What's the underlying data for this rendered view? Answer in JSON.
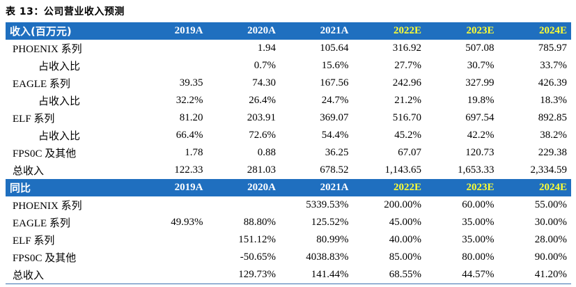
{
  "title": "表 13：公司营业收入预测",
  "section1": {
    "header": [
      "收入(百万元)",
      "2019A",
      "2020A",
      "2021A",
      "2022E",
      "2023E",
      "2024E"
    ],
    "rows": [
      {
        "label": "PHOENIX 系列",
        "indent": false,
        "values": [
          "",
          "1.94",
          "105.64",
          "316.92",
          "507.08",
          "785.97"
        ]
      },
      {
        "label": "占收入比",
        "indent": true,
        "values": [
          "",
          "0.7%",
          "15.6%",
          "27.7%",
          "30.7%",
          "33.7%"
        ]
      },
      {
        "label": "EAGLE 系列",
        "indent": false,
        "values": [
          "39.35",
          "74.30",
          "167.56",
          "242.96",
          "327.99",
          "426.39"
        ]
      },
      {
        "label": "占收入比",
        "indent": true,
        "values": [
          "32.2%",
          "26.4%",
          "24.7%",
          "21.2%",
          "19.8%",
          "18.3%"
        ]
      },
      {
        "label": "ELF 系列",
        "indent": false,
        "values": [
          "81.20",
          "203.91",
          "369.07",
          "516.70",
          "697.54",
          "892.85"
        ]
      },
      {
        "label": "占收入比",
        "indent": true,
        "values": [
          "66.4%",
          "72.6%",
          "54.4%",
          "45.2%",
          "42.2%",
          "38.2%"
        ]
      },
      {
        "label": "FPS0C 及其他",
        "indent": false,
        "values": [
          "1.78",
          "0.88",
          "36.25",
          "67.07",
          "120.73",
          "229.38"
        ]
      },
      {
        "label": "总收入",
        "indent": false,
        "values": [
          "122.33",
          "281.03",
          "678.52",
          "1,143.65",
          "1,653.33",
          "2,334.59"
        ]
      }
    ]
  },
  "section2": {
    "header": [
      "同比",
      "2019A",
      "2020A",
      "2021A",
      "2022E",
      "2023E",
      "2024E"
    ],
    "rows": [
      {
        "label": "PHOENIX 系列",
        "indent": false,
        "values": [
          "",
          "",
          "5339.53%",
          "200.00%",
          "60.00%",
          "55.00%"
        ]
      },
      {
        "label": "EAGLE 系列",
        "indent": false,
        "values": [
          "49.93%",
          "88.80%",
          "125.52%",
          "45.00%",
          "35.00%",
          "30.00%"
        ]
      },
      {
        "label": "ELF 系列",
        "indent": false,
        "values": [
          "",
          "151.12%",
          "80.99%",
          "40.00%",
          "35.00%",
          "28.00%"
        ]
      },
      {
        "label": "FPS0C 及其他",
        "indent": false,
        "values": [
          "",
          "-50.65%",
          "4038.83%",
          "85.00%",
          "80.00%",
          "90.00%"
        ]
      },
      {
        "label": "总收入",
        "indent": false,
        "values": [
          "",
          "129.73%",
          "141.44%",
          "68.55%",
          "44.57%",
          "41.20%"
        ]
      }
    ]
  },
  "colors": {
    "header_bg": "#1f6fbf",
    "header_text": "#ffffff",
    "estimate_text": "#ffff33"
  }
}
